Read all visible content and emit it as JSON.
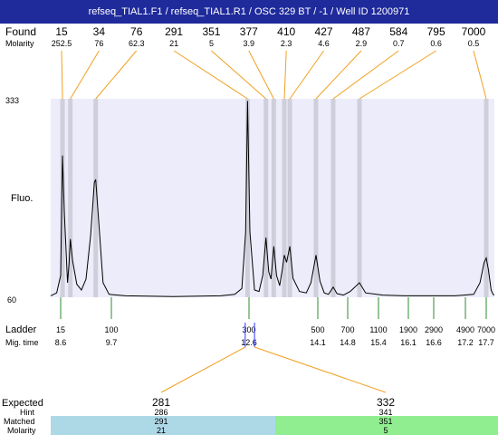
{
  "title": "refseq_TIAL1.F1 / refseq_TIAL1.R1 / OSC 329 BT / -1 / Well ID 1200971",
  "labels": {
    "found": "Found",
    "molarity": "Molarity",
    "fluo": "Fluo.",
    "ladder": "Ladder",
    "mig_time": "Mig. time",
    "expected": "Expected",
    "hint": "Hint",
    "matched": "Matched",
    "molarity_bottom": "Molarity"
  },
  "colors": {
    "title_bg": "#1f2a9b",
    "plot_bg": "#ececfa",
    "band": "#cfcfdc",
    "connector": "#f0a020",
    "ladder_tick": "#2e8b2e",
    "marker": "#3333ff",
    "panel_left": "#add8e6",
    "panel_right": "#90ee90"
  },
  "chart_data": {
    "type": "line",
    "x_axis": "migration time",
    "ylim": [
      60,
      333
    ],
    "y_ticks": [
      "333",
      "60"
    ],
    "found": [
      {
        "size": "15",
        "molarity": "252.5",
        "time": 8.64
      },
      {
        "size": "34",
        "molarity": "76",
        "time": 8.81
      },
      {
        "size": "76",
        "molarity": "62.3",
        "time": 9.36
      },
      {
        "size": "291",
        "molarity": "21",
        "time": 12.57
      },
      {
        "size": "351",
        "molarity": "5",
        "time": 12.97
      },
      {
        "size": "377",
        "molarity": "3.9",
        "time": 13.14
      },
      {
        "size": "410",
        "molarity": "2.3",
        "time": 13.37
      },
      {
        "size": "427",
        "molarity": "4.6",
        "time": 13.49
      },
      {
        "size": "487",
        "molarity": "2.9",
        "time": 14.06
      },
      {
        "size": "584",
        "molarity": "0.7",
        "time": 14.46
      },
      {
        "size": "795",
        "molarity": "0.6",
        "time": 15.03
      },
      {
        "size": "7000",
        "molarity": "0.5",
        "time": 17.7
      }
    ],
    "ladder": [
      {
        "size": "15",
        "time": "8.6"
      },
      {
        "size": "100",
        "time": "9.7"
      },
      {
        "size": "300",
        "time": "12.6"
      },
      {
        "size": "500",
        "time": "14.1"
      },
      {
        "size": "700",
        "time": "14.8"
      },
      {
        "size": "1100",
        "time": "15.4"
      },
      {
        "size": "1900",
        "time": "16.1"
      },
      {
        "size": "2900",
        "time": "16.6"
      },
      {
        "size": "4900",
        "time": "17.2"
      },
      {
        "size": "7000",
        "time": "17.7"
      }
    ],
    "trace": [
      [
        8.35,
        62
      ],
      [
        8.5,
        66
      ],
      [
        8.6,
        90
      ],
      [
        8.64,
        255
      ],
      [
        8.68,
        175
      ],
      [
        8.75,
        80
      ],
      [
        8.78,
        105
      ],
      [
        8.81,
        140
      ],
      [
        8.86,
        110
      ],
      [
        8.95,
        78
      ],
      [
        9.05,
        70
      ],
      [
        9.15,
        85
      ],
      [
        9.25,
        145
      ],
      [
        9.33,
        218
      ],
      [
        9.36,
        222
      ],
      [
        9.42,
        170
      ],
      [
        9.52,
        80
      ],
      [
        9.65,
        64
      ],
      [
        10.0,
        62
      ],
      [
        11.0,
        61
      ],
      [
        12.0,
        62
      ],
      [
        12.3,
        64
      ],
      [
        12.45,
        72
      ],
      [
        12.53,
        150
      ],
      [
        12.57,
        330
      ],
      [
        12.62,
        150
      ],
      [
        12.72,
        70
      ],
      [
        12.82,
        68
      ],
      [
        12.9,
        90
      ],
      [
        12.97,
        142
      ],
      [
        13.03,
        95
      ],
      [
        13.08,
        85
      ],
      [
        13.14,
        130
      ],
      [
        13.2,
        90
      ],
      [
        13.27,
        76
      ],
      [
        13.33,
        100
      ],
      [
        13.37,
        118
      ],
      [
        13.42,
        108
      ],
      [
        13.49,
        130
      ],
      [
        13.56,
        86
      ],
      [
        13.7,
        68
      ],
      [
        13.85,
        66
      ],
      [
        13.95,
        80
      ],
      [
        14.06,
        118
      ],
      [
        14.15,
        82
      ],
      [
        14.25,
        66
      ],
      [
        14.35,
        64
      ],
      [
        14.46,
        74
      ],
      [
        14.55,
        65
      ],
      [
        14.7,
        63
      ],
      [
        14.85,
        68
      ],
      [
        15.03,
        80
      ],
      [
        15.15,
        66
      ],
      [
        15.5,
        63
      ],
      [
        16.0,
        62
      ],
      [
        16.5,
        62
      ],
      [
        17.0,
        62
      ],
      [
        17.4,
        64
      ],
      [
        17.55,
        80
      ],
      [
        17.65,
        108
      ],
      [
        17.7,
        114
      ],
      [
        17.78,
        98
      ],
      [
        17.88,
        70
      ],
      [
        17.95,
        64
      ],
      [
        18.0,
        63
      ]
    ],
    "marker_times": [
      12.52,
      12.72
    ],
    "expected": [
      {
        "expected": "281",
        "hint": "286",
        "matched": "291",
        "molarity": "21"
      },
      {
        "expected": "332",
        "hint": "341",
        "matched": "351",
        "molarity": "5"
      }
    ]
  }
}
